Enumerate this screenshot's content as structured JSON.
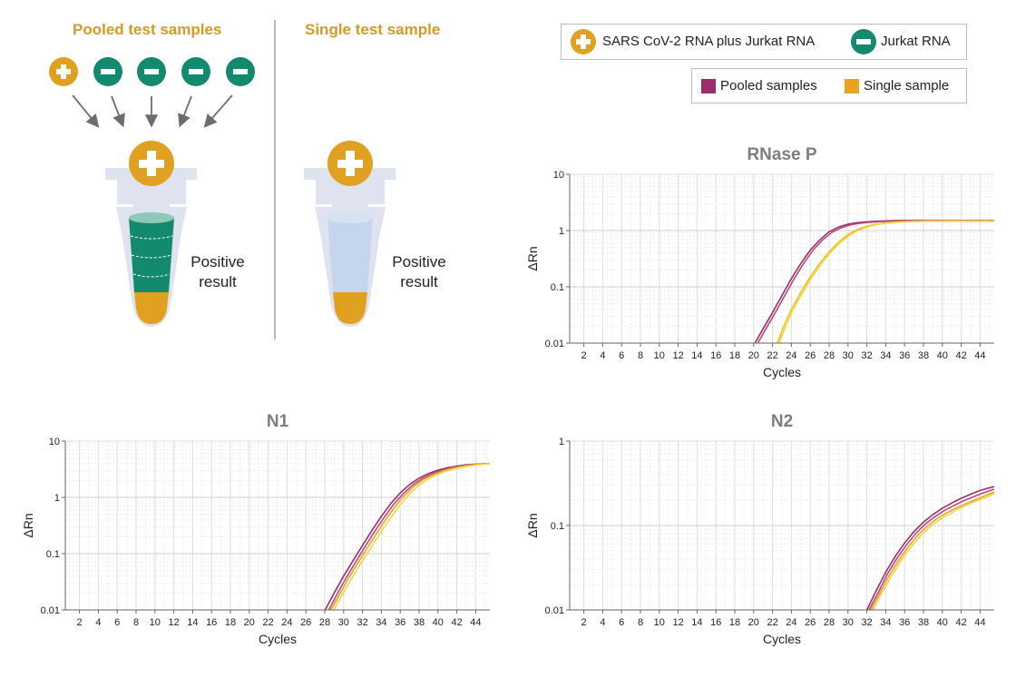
{
  "diagram": {
    "pooled_heading": "Pooled test samples",
    "single_heading": "Single test sample",
    "pooled_result": [
      "Positive",
      "result"
    ],
    "single_result": [
      "Positive",
      "result"
    ],
    "colors": {
      "gold": "#e0a020",
      "teal": "#138a6f",
      "tube": "#dfe3ef"
    }
  },
  "legend_samples": {
    "positive_label": "SARS CoV-2 RNA plus Jurkat RNA",
    "negative_label": "Jurkat RNA"
  },
  "legend_series": {
    "pooled_label": "Pooled samples",
    "single_label": "Single sample",
    "pooled_color": "#9b2d6b",
    "single_color": "#e9a321"
  },
  "chart_data": [
    {
      "id": "rnasep",
      "type": "line",
      "title": "RNase P",
      "xlabel": "Cycles",
      "ylabel": "ΔRn",
      "yscale": "log",
      "xlim": [
        0.5,
        45.5
      ],
      "ylim": [
        0.01,
        10
      ],
      "xticks": [
        2,
        4,
        6,
        8,
        10,
        12,
        14,
        16,
        18,
        20,
        22,
        24,
        26,
        28,
        30,
        32,
        34,
        36,
        38,
        40,
        42,
        44
      ],
      "yticks": [
        0.01,
        0.1,
        1,
        10
      ],
      "ytick_labels": [
        "0.01",
        "0.1",
        "1",
        "10"
      ],
      "series": [
        {
          "name": "Pooled samples",
          "color": "#9b2d6b",
          "x": [
            20,
            21,
            22,
            23,
            24,
            25,
            26,
            27,
            28,
            29,
            30,
            31,
            32,
            33,
            34,
            35,
            36,
            37,
            38,
            40,
            42,
            44,
            45.5
          ],
          "y": [
            0.009,
            0.018,
            0.035,
            0.07,
            0.14,
            0.26,
            0.45,
            0.68,
            0.95,
            1.15,
            1.3,
            1.38,
            1.43,
            1.46,
            1.48,
            1.5,
            1.51,
            1.51,
            1.51,
            1.51,
            1.51,
            1.51,
            1.51
          ]
        },
        {
          "name": "",
          "color": "#b7497f",
          "x": [
            20.3,
            21.3,
            22.3,
            23.3,
            24.3,
            25.3,
            26.3,
            27.3,
            28.3,
            29.3,
            30.3,
            31.3,
            32.3,
            33.3,
            34.3,
            36,
            38,
            40,
            42,
            44,
            45.5
          ],
          "y": [
            0.009,
            0.018,
            0.035,
            0.07,
            0.14,
            0.26,
            0.45,
            0.68,
            0.93,
            1.12,
            1.27,
            1.35,
            1.4,
            1.44,
            1.46,
            1.48,
            1.49,
            1.49,
            1.49,
            1.49,
            1.49
          ]
        },
        {
          "name": "Single sample",
          "color": "#e8c51d",
          "x": [
            22.4,
            23.2,
            24,
            25,
            26,
            27,
            28,
            29,
            30,
            31,
            32,
            33,
            34,
            35,
            36,
            37,
            38,
            40,
            42,
            44,
            45.5
          ],
          "y": [
            0.009,
            0.02,
            0.04,
            0.08,
            0.15,
            0.26,
            0.42,
            0.62,
            0.85,
            1.05,
            1.2,
            1.3,
            1.37,
            1.41,
            1.44,
            1.46,
            1.47,
            1.48,
            1.48,
            1.48,
            1.48
          ]
        },
        {
          "name": "",
          "color": "#f0d548",
          "x": [
            22.6,
            23.4,
            24.2,
            25.2,
            26.2,
            27.2,
            28.2,
            29.2,
            30.2,
            31.2,
            32.2,
            33.2,
            34.2,
            35.2,
            36.2,
            38,
            40,
            42,
            44,
            45.5
          ],
          "y": [
            0.009,
            0.02,
            0.04,
            0.08,
            0.15,
            0.26,
            0.42,
            0.62,
            0.84,
            1.03,
            1.18,
            1.29,
            1.36,
            1.4,
            1.43,
            1.46,
            1.47,
            1.47,
            1.47,
            1.47
          ]
        }
      ]
    },
    {
      "id": "n1",
      "type": "line",
      "title": "N1",
      "xlabel": "Cycles",
      "ylabel": "ΔRn",
      "yscale": "log",
      "xlim": [
        0.5,
        45.5
      ],
      "ylim": [
        0.01,
        10
      ],
      "xticks": [
        2,
        4,
        6,
        8,
        10,
        12,
        14,
        16,
        18,
        20,
        22,
        24,
        26,
        28,
        30,
        32,
        34,
        36,
        38,
        40,
        42,
        44
      ],
      "yticks": [
        0.01,
        0.1,
        1,
        10
      ],
      "ytick_labels": [
        "0.01",
        "0.1",
        "1",
        "10"
      ],
      "series": [
        {
          "name": "Pooled samples",
          "color": "#9b2d6b",
          "x": [
            27.9,
            29,
            30,
            31,
            32,
            33,
            34,
            35,
            36,
            37,
            38,
            39,
            40,
            41,
            42,
            43,
            44,
            45.5
          ],
          "y": [
            0.009,
            0.02,
            0.04,
            0.075,
            0.14,
            0.26,
            0.46,
            0.78,
            1.2,
            1.7,
            2.2,
            2.65,
            3.05,
            3.35,
            3.6,
            3.78,
            3.9,
            4.0
          ]
        },
        {
          "name": "",
          "color": "#b7497f",
          "x": [
            28.3,
            29.3,
            30.3,
            31.3,
            32.3,
            33.3,
            34.3,
            35.3,
            36.3,
            37.3,
            38.3,
            39.3,
            40.3,
            41.3,
            42.3,
            43.3,
            44.3,
            45.5
          ],
          "y": [
            0.009,
            0.019,
            0.038,
            0.072,
            0.135,
            0.25,
            0.44,
            0.75,
            1.15,
            1.65,
            2.15,
            2.6,
            3.0,
            3.3,
            3.55,
            3.75,
            3.88,
            3.98
          ]
        },
        {
          "name": "Single sample",
          "color": "#e9a321",
          "x": [
            28.5,
            29.5,
            30.5,
            31.5,
            32.5,
            33.5,
            34.5,
            35.5,
            36.5,
            37.5,
            38.5,
            39.5,
            40.5,
            41.5,
            42.5,
            43.5,
            44.5,
            45.5
          ],
          "y": [
            0.009,
            0.018,
            0.036,
            0.068,
            0.125,
            0.23,
            0.41,
            0.7,
            1.1,
            1.6,
            2.1,
            2.55,
            2.95,
            3.3,
            3.55,
            3.75,
            3.9,
            3.98
          ]
        },
        {
          "name": "",
          "color": "#f0d548",
          "x": [
            28.8,
            29.8,
            30.8,
            31.8,
            32.8,
            33.8,
            34.8,
            35.8,
            36.8,
            37.8,
            38.8,
            39.8,
            40.8,
            41.8,
            42.8,
            43.8,
            44.8,
            45.5
          ],
          "y": [
            0.009,
            0.018,
            0.035,
            0.066,
            0.12,
            0.22,
            0.39,
            0.67,
            1.06,
            1.55,
            2.05,
            2.5,
            2.9,
            3.25,
            3.5,
            3.72,
            3.88,
            3.96
          ]
        }
      ]
    },
    {
      "id": "n2",
      "type": "line",
      "title": "N2",
      "xlabel": "Cycles",
      "ylabel": "ΔRn",
      "yscale": "log",
      "xlim": [
        0.5,
        45.5
      ],
      "ylim": [
        0.01,
        1
      ],
      "xticks": [
        2,
        4,
        6,
        8,
        10,
        12,
        14,
        16,
        18,
        20,
        22,
        24,
        26,
        28,
        30,
        32,
        34,
        36,
        38,
        40,
        42,
        44
      ],
      "yticks": [
        0.01,
        0.1,
        1
      ],
      "ytick_labels": [
        "0.01",
        "0.1",
        "1"
      ],
      "series": [
        {
          "name": "Pooled samples",
          "color": "#9b2d6b",
          "x": [
            31.8,
            33,
            34,
            35,
            36,
            37,
            38,
            39,
            40,
            41,
            42,
            43,
            44,
            45.5
          ],
          "y": [
            0.009,
            0.017,
            0.028,
            0.043,
            0.062,
            0.085,
            0.11,
            0.135,
            0.16,
            0.185,
            0.21,
            0.235,
            0.26,
            0.29
          ]
        },
        {
          "name": "",
          "color": "#b7497f",
          "x": [
            32,
            33.2,
            34.2,
            35.2,
            36.2,
            37.2,
            38.2,
            39.2,
            40.2,
            41.2,
            42.2,
            43.2,
            44.2,
            45.5
          ],
          "y": [
            0.009,
            0.016,
            0.027,
            0.041,
            0.059,
            0.081,
            0.104,
            0.127,
            0.15,
            0.172,
            0.195,
            0.217,
            0.24,
            0.27
          ]
        },
        {
          "name": "Single sample",
          "color": "#e9a321",
          "x": [
            32.2,
            33.4,
            34.4,
            35.4,
            36.4,
            37.4,
            38.4,
            39.4,
            40.4,
            41.4,
            42.4,
            43.4,
            44.4,
            45.5
          ],
          "y": [
            0.009,
            0.016,
            0.026,
            0.039,
            0.056,
            0.077,
            0.098,
            0.12,
            0.14,
            0.16,
            0.18,
            0.2,
            0.222,
            0.25
          ]
        },
        {
          "name": "",
          "color": "#f0d548",
          "x": [
            32.4,
            33.6,
            34.6,
            35.6,
            36.6,
            37.6,
            38.6,
            39.6,
            40.6,
            41.6,
            42.6,
            43.6,
            44.6,
            45.5
          ],
          "y": [
            0.009,
            0.016,
            0.025,
            0.038,
            0.054,
            0.074,
            0.095,
            0.115,
            0.135,
            0.155,
            0.175,
            0.195,
            0.215,
            0.24
          ]
        }
      ]
    }
  ]
}
